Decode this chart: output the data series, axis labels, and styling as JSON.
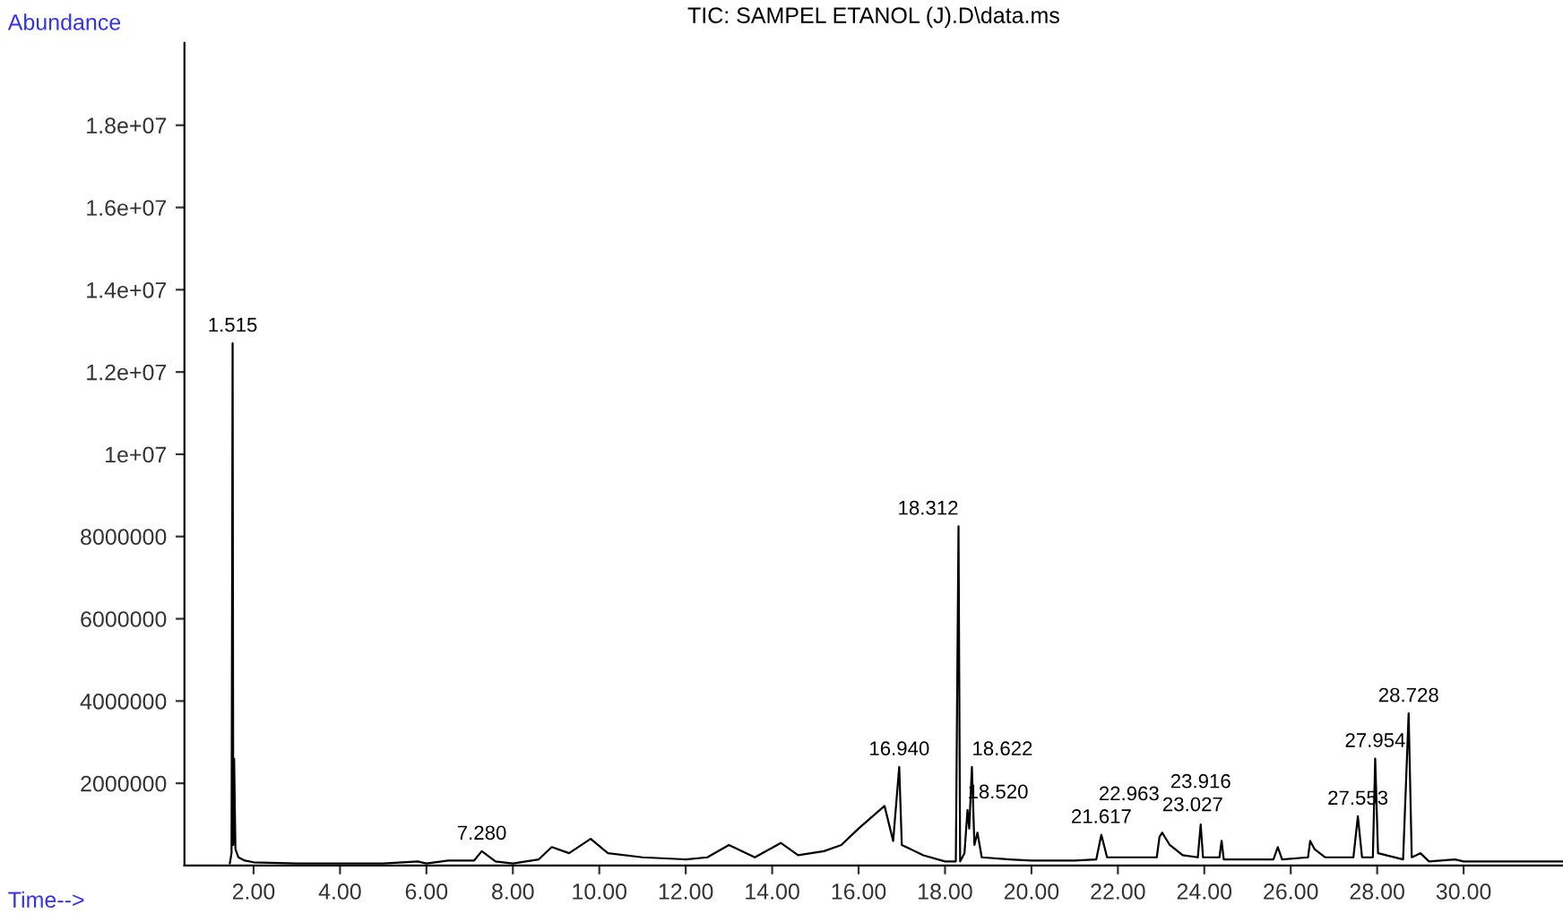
{
  "chart_data": {
    "type": "line",
    "title": "TIC: SAMPEL ETANOL (J).D\\data.ms",
    "xlabel": "Time-->",
    "ylabel": "Abundance",
    "series": [
      {
        "color": "#000000",
        "x": [
          1.45,
          1.49,
          1.515,
          1.53,
          1.55,
          1.58,
          1.65,
          1.8,
          2.0,
          3.0,
          4.0,
          5.0,
          5.8,
          6.0,
          6.5,
          7.1,
          7.28,
          7.6,
          8.0,
          8.6,
          8.9,
          9.3,
          9.8,
          10.2,
          11.0,
          12.0,
          12.5,
          13.0,
          13.6,
          14.2,
          14.6,
          15.2,
          15.6,
          16.0,
          16.6,
          16.8,
          16.94,
          17.0,
          17.5,
          18.0,
          18.25,
          18.312,
          18.35,
          18.45,
          18.52,
          18.56,
          18.622,
          18.68,
          18.75,
          18.85,
          19.5,
          20.0,
          21.0,
          21.5,
          21.617,
          21.75,
          22.9,
          22.963,
          23.027,
          23.2,
          23.5,
          23.85,
          23.916,
          23.97,
          24.35,
          24.4,
          24.45,
          25.6,
          25.7,
          25.8,
          26.4,
          26.45,
          26.55,
          26.8,
          27.45,
          27.553,
          27.65,
          27.9,
          27.954,
          28.02,
          28.6,
          28.728,
          28.8,
          29.0,
          29.2,
          29.8,
          30.0,
          32.3
        ],
        "values": [
          50000,
          300000,
          12700000,
          500000,
          2600000,
          400000,
          200000,
          120000,
          80000,
          50000,
          50000,
          50000,
          100000,
          50000,
          120000,
          120000,
          350000,
          100000,
          50000,
          150000,
          450000,
          300000,
          650000,
          300000,
          200000,
          150000,
          200000,
          500000,
          200000,
          550000,
          250000,
          350000,
          500000,
          900000,
          1450000,
          600000,
          2400000,
          500000,
          250000,
          100000,
          100000,
          8250000,
          100000,
          300000,
          1350000,
          900000,
          2400000,
          500000,
          800000,
          200000,
          150000,
          120000,
          120000,
          150000,
          750000,
          200000,
          200000,
          700000,
          800000,
          500000,
          250000,
          200000,
          1000000,
          200000,
          200000,
          600000,
          150000,
          150000,
          450000,
          150000,
          200000,
          600000,
          400000,
          200000,
          200000,
          1200000,
          200000,
          200000,
          2600000,
          300000,
          150000,
          3700000,
          200000,
          300000,
          100000,
          150000,
          100000,
          100000
        ]
      }
    ],
    "xlim": [
      0.4,
      32.3
    ],
    "ylim": [
      0,
      20000000
    ],
    "xticks": [
      {
        "value": 2,
        "label": "2.00"
      },
      {
        "value": 4,
        "label": "4.00"
      },
      {
        "value": 6,
        "label": "6.00"
      },
      {
        "value": 8,
        "label": "8.00"
      },
      {
        "value": 10,
        "label": "10.00"
      },
      {
        "value": 12,
        "label": "12.00"
      },
      {
        "value": 14,
        "label": "14.00"
      },
      {
        "value": 16,
        "label": "16.00"
      },
      {
        "value": 18,
        "label": "18.00"
      },
      {
        "value": 20,
        "label": "20.00"
      },
      {
        "value": 22,
        "label": "22.00"
      },
      {
        "value": 24,
        "label": "24.00"
      },
      {
        "value": 26,
        "label": "26.00"
      },
      {
        "value": 28,
        "label": "28.00"
      },
      {
        "value": 30,
        "label": "30.00"
      }
    ],
    "yticks": [
      2000000,
      4000000,
      6000000,
      8000000,
      {
        "value": 10000000,
        "label": "1e+07"
      },
      {
        "value": 12000000,
        "label": "1.2e+07"
      },
      {
        "value": 14000000,
        "label": "1.4e+07"
      },
      {
        "value": 16000000,
        "label": "1.6e+07"
      },
      {
        "value": 18000000,
        "label": "1.8e+07"
      }
    ],
    "annotations": [
      {
        "text": "1.515",
        "x": 1.515,
        "y": 12700000
      },
      {
        "text": "7.280",
        "x": 7.28,
        "y": 350000
      },
      {
        "text": "16.940",
        "x": 16.94,
        "y": 2400000
      },
      {
        "text": "18.312",
        "x": 18.312,
        "y": 8250000
      },
      {
        "text": "18.520",
        "x": 18.52,
        "y": 1350000
      },
      {
        "text": "18.622",
        "x": 18.622,
        "y": 2400000
      },
      {
        "text": "21.617",
        "x": 21.617,
        "y": 750000
      },
      {
        "text": "22.963",
        "x": 22.963,
        "y": 700000
      },
      {
        "text": "23.027",
        "x": 23.027,
        "y": 800000
      },
      {
        "text": "23.916",
        "x": 23.916,
        "y": 1000000
      },
      {
        "text": "27.553",
        "x": 27.553,
        "y": 1200000
      },
      {
        "text": "27.954",
        "x": 27.954,
        "y": 2600000
      },
      {
        "text": "28.728",
        "x": 28.728,
        "y": 3700000
      }
    ],
    "grid": false,
    "legend": false
  }
}
